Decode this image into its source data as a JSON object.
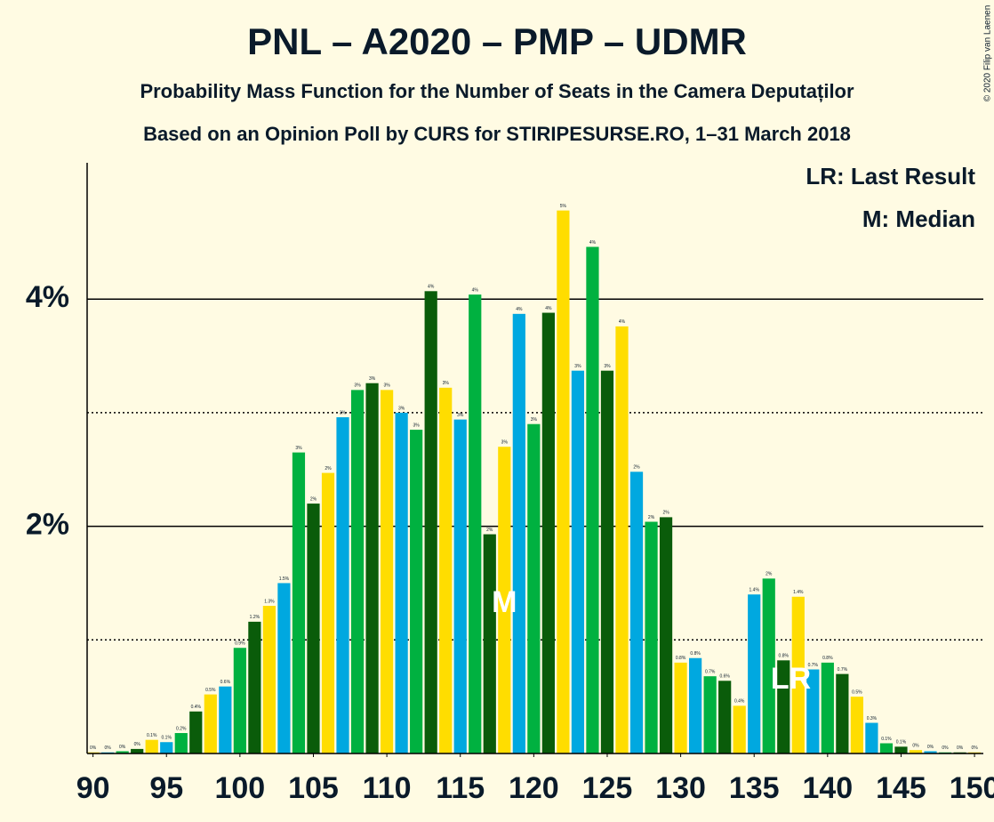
{
  "chart_data": {
    "type": "bar",
    "title": "PNL – A2020 – PMP – UDMR",
    "subtitle": "Probability Mass Function for the Number of Seats in the Camera Deputaților",
    "subtitle2": "Based on an Opinion Poll by CURS for STIRIPESURSE.RO, 1–31 March 2018",
    "copyright": "© 2020 Filip van Laenen",
    "legend_notes": [
      "LR: Last Result",
      "M: Median"
    ],
    "annotations": [
      {
        "x": 118,
        "label": "M"
      },
      {
        "x": 138,
        "label": "LR"
      }
    ],
    "x": [
      90,
      91,
      92,
      93,
      94,
      95,
      96,
      97,
      98,
      99,
      100,
      101,
      102,
      103,
      104,
      105,
      106,
      107,
      108,
      109,
      110,
      111,
      112,
      113,
      114,
      115,
      116,
      117,
      118,
      119,
      120,
      121,
      122,
      123,
      124,
      125,
      126,
      127,
      128,
      129,
      130,
      131,
      132,
      133,
      134,
      135,
      136,
      137,
      138,
      139,
      140,
      141,
      142,
      143,
      144,
      145,
      146,
      147,
      148,
      149,
      150
    ],
    "values": [
      0.01,
      0.01,
      0.02,
      0.04,
      0.12,
      0.1,
      0.18,
      0.37,
      0.52,
      0.59,
      0.93,
      1.16,
      1.3,
      1.5,
      2.65,
      2.2,
      2.47,
      2.96,
      3.2,
      3.26,
      3.2,
      3.0,
      2.85,
      4.07,
      3.22,
      2.94,
      4.04,
      1.93,
      2.7,
      3.87,
      2.9,
      3.88,
      4.78,
      3.37,
      4.46,
      3.37,
      3.76,
      2.48,
      2.04,
      2.08,
      0.8,
      0.84,
      0.68,
      0.64,
      0.42,
      1.4,
      1.54,
      0.82,
      1.38,
      0.74,
      0.8,
      0.7,
      0.5,
      0.27,
      0.09,
      0.06,
      0.03,
      0.02,
      0.01,
      0.01,
      0.01
    ],
    "value_labels": [
      "0%",
      "0%",
      "0%",
      "0%",
      "0.1%",
      "0.1%",
      "0.2%",
      "0.4%",
      "0.5%",
      "0.6%",
      "0.9%",
      "1.2%",
      "1.3%",
      "1.5%",
      "3%",
      "2%",
      "2%",
      "3%",
      "3%",
      "3%",
      "3%",
      "3%",
      "3%",
      "4%",
      "3%",
      "3%",
      "4%",
      "2%",
      "3%",
      "4%",
      "3%",
      "4%",
      "5%",
      "3%",
      "4%",
      "3%",
      "4%",
      "2%",
      "2%",
      "2%",
      "0.8%",
      "0.8%",
      "0.7%",
      "0.6%",
      "0.4%",
      "1.4%",
      "2%",
      "0.8%",
      "1.4%",
      "0.7%",
      "0.8%",
      "0.7%",
      "0.5%",
      "0.3%",
      "0.1%",
      "0.1%",
      "0%",
      "0%",
      "0%",
      "0%",
      "0%"
    ],
    "colors": [
      "#00b140",
      "#0a5c0a",
      "#ffdd00",
      "#00a8e0"
    ],
    "xlim": [
      89.6,
      150.6
    ],
    "xticks": [
      90,
      95,
      100,
      105,
      110,
      115,
      120,
      125,
      130,
      135,
      140,
      145,
      150
    ],
    "ylim": [
      0,
      5.2
    ],
    "yticks": [
      {
        "value": 2,
        "label": "2%"
      },
      {
        "value": 4,
        "label": "4%"
      }
    ],
    "minor_yticks": [
      1,
      3
    ],
    "grid": true
  }
}
